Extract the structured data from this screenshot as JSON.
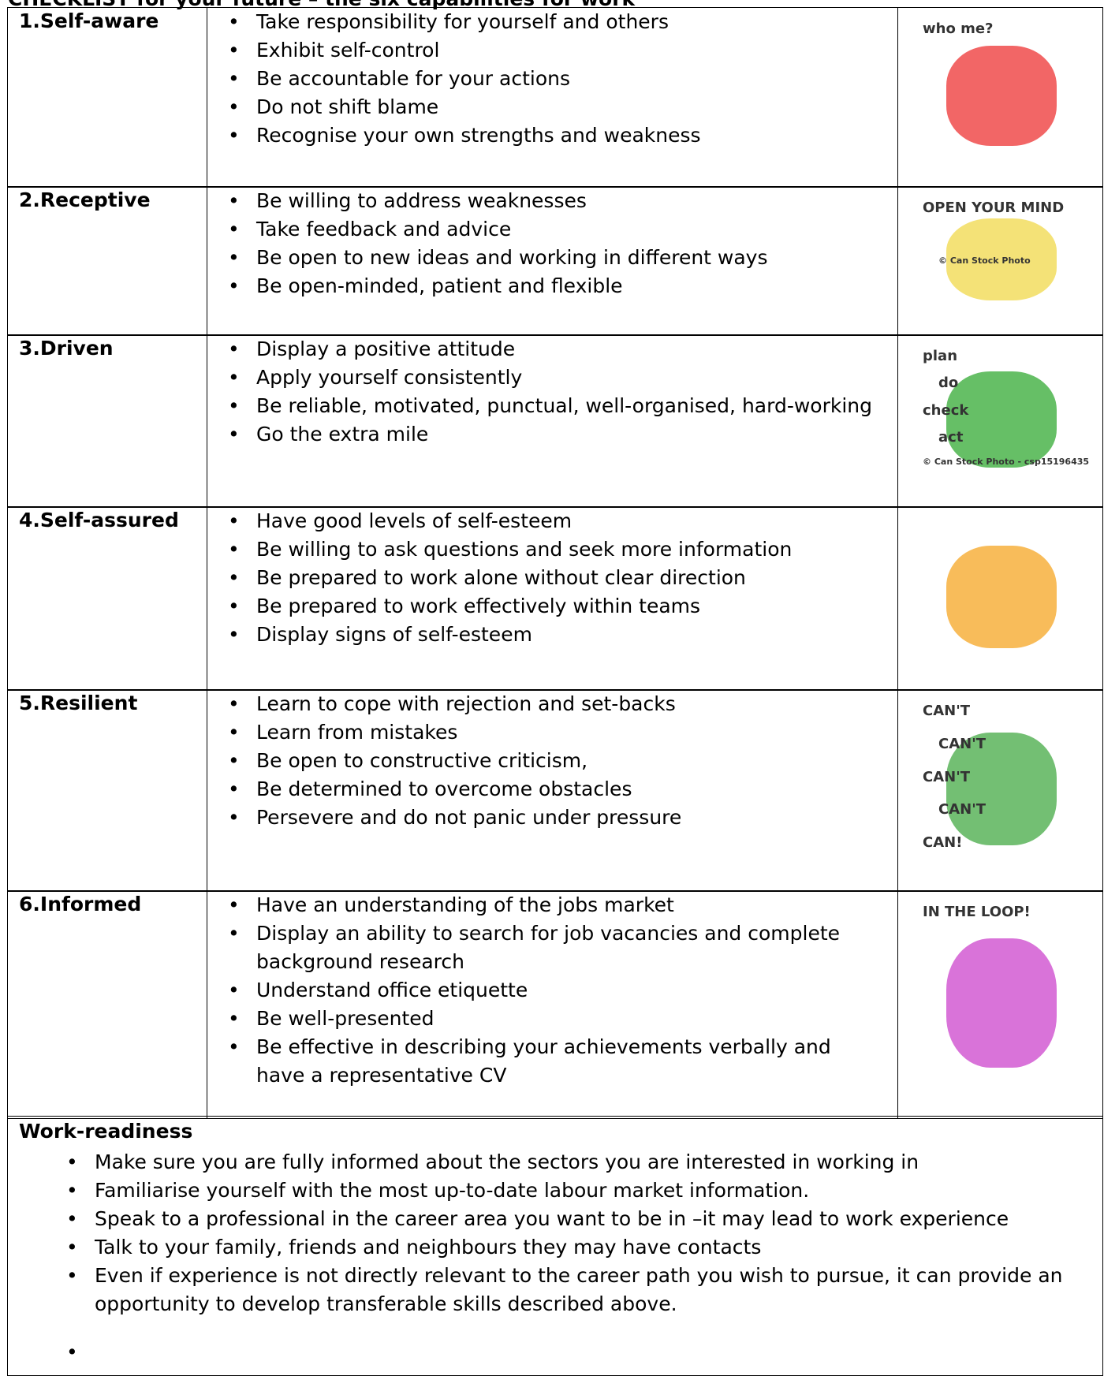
{
  "header": {
    "title": "CHECKLIST for your future – the six capabilities for work"
  },
  "table": {
    "rows": [
      {
        "label": "1.Self-aware",
        "items": [
          "Take responsibility for yourself and others",
          "Exhibit self-control",
          "Be accountable for your  actions",
          "Do not shift blame",
          "Recognise your own strengths and weakness"
        ],
        "image_text": [
          "who me?"
        ]
      },
      {
        "label": "2.Receptive",
        "items": [
          "Be willing to address weaknesses",
          "Take feedback and advice",
          "Be open to new ideas and working in different ways",
          "Be open-minded, patient and flexible"
        ],
        "image_text": [
          "OPEN YOUR MIND",
          "© Can Stock Photo"
        ]
      },
      {
        "label": "3.Driven",
        "items": [
          "Display a positive attitude",
          "Apply yourself consistently",
          "Be reliable, motivated, punctual, well-organised, hard-working",
          "Go the extra mile"
        ],
        "image_text": [
          "plan",
          "do",
          "check",
          "act",
          "© Can Stock Photo - csp15196435"
        ]
      },
      {
        "label": "4.Self-assured",
        "items": [
          "Have good levels of self-esteem",
          "Be willing to ask questions and seek more information",
          "Be prepared to work alone without clear direction",
          "Be prepared to work effectively within teams",
          "Display signs of self-esteem"
        ],
        "image_text": []
      },
      {
        "label": "5.Resilient",
        "items": [
          "Learn to cope with rejection and set-backs",
          "Learn from mistakes",
          "Be open to constructive criticism,",
          "Be determined to overcome obstacles",
          "Persevere and do not panic under pressure"
        ],
        "image_text": [
          "CAN'T",
          "CAN'T",
          "CAN'T",
          "CAN'T",
          "CAN!"
        ]
      },
      {
        "label": "6.Informed",
        "items": [
          "Have an understanding of the jobs market",
          "Display an ability to search for job vacancies and complete background research",
          "Understand office etiquette",
          "Be well-presented",
          "Be effective in describing your achievements verbally and have a representative CV"
        ],
        "image_text": [
          "IN THE LOOP!"
        ]
      }
    ]
  },
  "work_readiness": {
    "title": "Work-readiness",
    "items": [
      "Make sure you are fully informed about the sectors you are interested in working in",
      "Familiarise yourself with the most up-to-date labour market information.",
      "Speak to a professional in the career area you want to be in –it may lead to work experience",
      "Talk to  your family, friends and neighbours they may have contacts",
      "Even if experience is not directly relevant to the career path you wish to pursue, it can provide an opportunity to develop transferable skills described above."
    ]
  }
}
